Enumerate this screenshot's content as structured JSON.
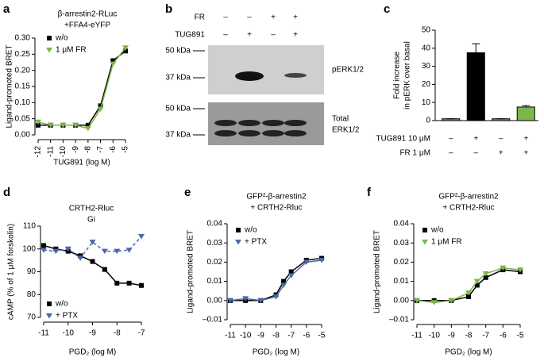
{
  "chart_data": [
    {
      "type": "line",
      "panel": "a",
      "title": [
        "β-arrestin2-RLuc",
        "+FFA4-eYFP"
      ],
      "xlabel": "TUG891 (log M)",
      "ylabel": "Ligand-promoted BRET",
      "x": [
        -12,
        -11,
        -10,
        -9,
        -8,
        -7,
        -6,
        -5
      ],
      "series": [
        {
          "name": "w/o",
          "color": "#000000",
          "marker": "square",
          "values": [
            0.03,
            0.03,
            0.03,
            0.03,
            0.03,
            0.09,
            0.23,
            0.26
          ]
        },
        {
          "name": "1 μM FR",
          "color": "#7ab648",
          "marker": "triangle",
          "values": [
            0.04,
            0.03,
            0.03,
            0.03,
            0.02,
            0.08,
            0.22,
            0.27
          ]
        }
      ],
      "xlim": [
        -12,
        -5
      ],
      "xticks": [
        -12,
        -11,
        -10,
        -9,
        -8,
        -7,
        -6,
        -5
      ],
      "ylim": [
        0,
        0.3
      ],
      "yticks": [
        {
          "value": 0,
          "label": "0.00"
        },
        0.05,
        {
          "value": 0.1,
          "label": "0.10"
        },
        0.15,
        {
          "value": 0.2,
          "label": "0.20"
        },
        0.25,
        {
          "value": 0.3,
          "label": "0.30"
        }
      ],
      "legend": "top-left"
    },
    {
      "type": "bar",
      "panel": "c",
      "ylabel": [
        "Fold increase",
        "in pERK over basal"
      ],
      "categories": [
        null,
        null,
        null,
        null
      ],
      "values": [
        1,
        37.5,
        1,
        7.5
      ],
      "errors": [
        0,
        5,
        0,
        0.8
      ],
      "colors": [
        "#888888",
        "#000000",
        "#888888",
        "#7ab648"
      ],
      "conditions": [
        {
          "name": "TUG891 10 μM",
          "values": [
            "–",
            "+",
            "–",
            "+"
          ]
        },
        {
          "name": "FR 1 μM",
          "values": [
            "–",
            "–",
            "+",
            "+"
          ]
        }
      ],
      "ylim": [
        0,
        50
      ],
      "yticks": [
        0,
        10,
        20,
        30,
        40,
        50
      ]
    },
    {
      "type": "line",
      "panel": "d",
      "title": [
        "CRTH2-Rluc",
        "Gi"
      ],
      "xlabel": "PGD₂ (log M)",
      "ylabel": "cAMP (% of 1 μM forskolin)",
      "x": [
        -11,
        -10.5,
        -10,
        -9.5,
        -9,
        -8.5,
        -8,
        -7.5,
        -7
      ],
      "series": [
        {
          "name": "w/o",
          "color": "#000000",
          "marker": "square",
          "values": [
            101.5,
            100,
            99,
            97,
            94.5,
            91,
            85,
            85,
            84
          ]
        },
        {
          "name": "+ PTX",
          "color": "#4a67a8",
          "marker": "triangle",
          "dashed": true,
          "values": [
            99.5,
            99,
            100,
            96,
            103,
            99,
            99,
            99.5,
            105.5
          ]
        }
      ],
      "xlim": [
        -11,
        -7
      ],
      "xticks": [
        -11,
        -10,
        -9,
        -8,
        -7
      ],
      "ylim": [
        70,
        110
      ],
      "yticks": [
        70,
        80,
        90,
        100,
        110
      ],
      "legend": "bottom-left"
    },
    {
      "type": "line",
      "panel": "e",
      "title": [
        "GFP²-β-arrestin2",
        "+ CRTH2-Rluc"
      ],
      "xlabel": "PGD₂ (log M)",
      "ylabel": "Ligand-promoted BRET",
      "x": [
        -11,
        -10,
        -9,
        -8,
        -7.5,
        -7,
        -6,
        -5
      ],
      "series": [
        {
          "name": "w/o",
          "color": "#000000",
          "marker": "square",
          "values": [
            0,
            0,
            0,
            0.003,
            0.01,
            0.015,
            0.021,
            0.022
          ]
        },
        {
          "name": "+ PTX",
          "color": "#4a67a8",
          "marker": "triangle",
          "values": [
            0,
            0.001,
            0,
            0.002,
            0.008,
            0.013,
            0.02,
            0.021
          ]
        }
      ],
      "xlim": [
        -11,
        -5
      ],
      "xticks": [
        -11,
        -10,
        -9,
        -8,
        -7,
        -6,
        -5
      ],
      "ylim": [
        -0.01,
        0.04
      ],
      "yticks": [
        {
          "value": -0.01,
          "label": "–0.01"
        },
        {
          "value": 0,
          "label": "0.00"
        },
        0.01,
        0.02,
        0.03,
        0.04
      ],
      "legend": "top-left"
    },
    {
      "type": "line",
      "panel": "f",
      "title": [
        "GFP²-β-arrestin2",
        "+ CRTH2-Rluc"
      ],
      "xlabel": "PGD₂ (log M)",
      "ylabel": "Ligand-promoted BRET",
      "x": [
        -11,
        -10,
        -9,
        -8,
        -7.5,
        -7,
        -6,
        -5
      ],
      "series": [
        {
          "name": "w/o",
          "color": "#000000",
          "marker": "square",
          "values": [
            0,
            0,
            0,
            0.002,
            0.008,
            0.012,
            0.016,
            0.015
          ]
        },
        {
          "name": "1 μM FR",
          "color": "#7ab648",
          "marker": "triangle",
          "values": [
            0,
            -0.001,
            0,
            0.004,
            0.01,
            0.014,
            0.017,
            0.016
          ]
        }
      ],
      "xlim": [
        -11,
        -5
      ],
      "xticks": [
        -11,
        -10,
        -9,
        -8,
        -7,
        -6,
        -5
      ],
      "ylim": [
        -0.01,
        0.04
      ],
      "yticks": [
        {
          "value": -0.01,
          "label": "–0.01"
        },
        {
          "value": 0,
          "label": "0.00"
        },
        0.01,
        0.02,
        0.03,
        0.04
      ],
      "legend": "top-left"
    }
  ],
  "blot": {
    "panel": "b",
    "rows": [
      {
        "name": "FR",
        "values": [
          "–",
          "–",
          "+",
          "+"
        ]
      },
      {
        "name": "TUG891",
        "values": [
          "–",
          "+",
          "–",
          "+"
        ]
      }
    ],
    "markers": [
      "50 kDa",
      "37 kDa",
      "50 kDa",
      "37 kDa"
    ],
    "labels": [
      "pERK1/2",
      [
        "Total",
        "ERK1/2"
      ]
    ]
  }
}
